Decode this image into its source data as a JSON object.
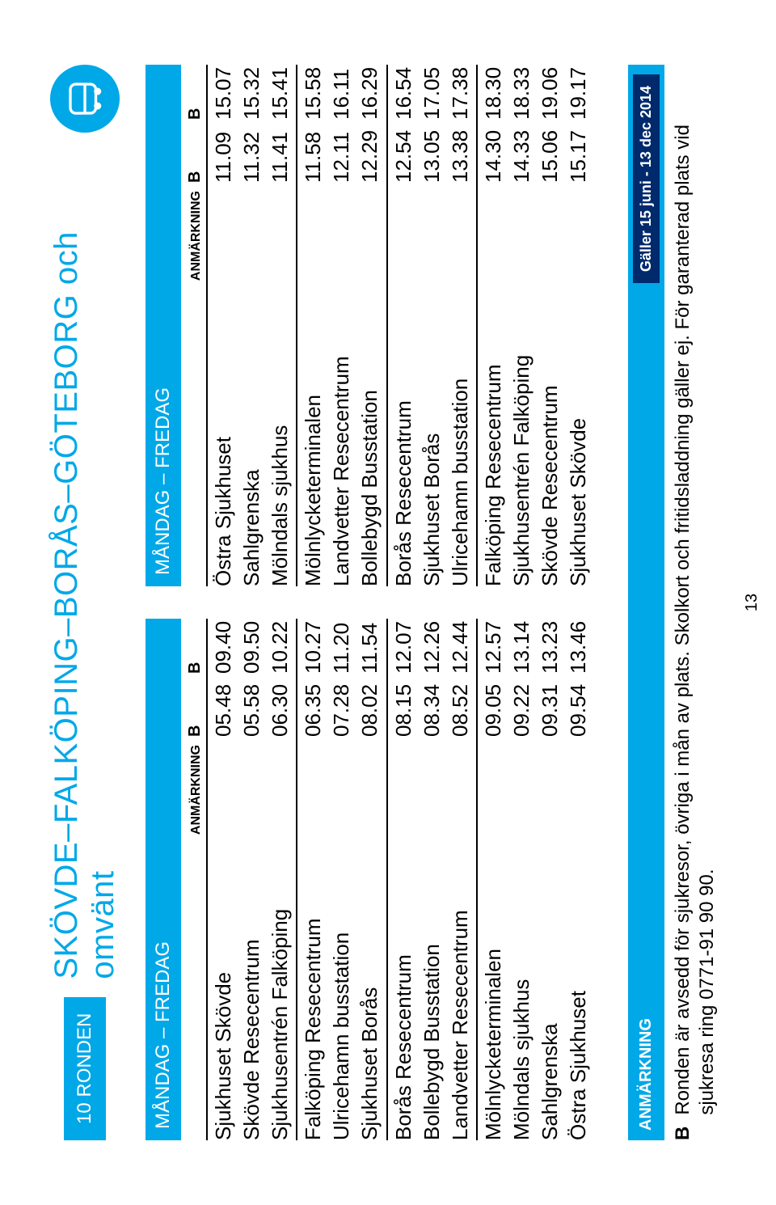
{
  "colors": {
    "primary": "#00a8e8",
    "validity_bg": "#002a6b",
    "text": "#000000",
    "bg": "#ffffff"
  },
  "header": {
    "route_box": "10 RONDEN",
    "title": "SKÖVDE–FALKÖPING–BORÅS–GÖTEBORG och omvänt"
  },
  "day_label": "MÅNDAG – FREDAG",
  "col_header": {
    "anmarkning": "ANMÄRKNING",
    "b": "B"
  },
  "left": {
    "groups": [
      [
        {
          "stop": "Sjukhuset Skövde",
          "t1": "05.48",
          "t2": "09.40"
        },
        {
          "stop": "Skövde Resecentrum",
          "t1": "05.58",
          "t2": "09.50"
        },
        {
          "stop": "Sjukhusentrén Falköping",
          "t1": "06.30",
          "t2": "10.22"
        }
      ],
      [
        {
          "stop": "Falköping Resecentrum",
          "t1": "06.35",
          "t2": "10.27"
        },
        {
          "stop": "Ulricehamn busstation",
          "t1": "07.28",
          "t2": "11.20"
        },
        {
          "stop": "Sjukhuset Borås",
          "t1": "08.02",
          "t2": "11.54"
        }
      ],
      [
        {
          "stop": "Borås Resecentrum",
          "t1": "08.15",
          "t2": "12.07"
        },
        {
          "stop": "Bollebygd Busstation",
          "t1": "08.34",
          "t2": "12.26"
        },
        {
          "stop": "Landvetter Resecentrum",
          "t1": "08.52",
          "t2": "12.44"
        }
      ],
      [
        {
          "stop": "Mölnlycketerminalen",
          "t1": "09.05",
          "t2": "12.57"
        },
        {
          "stop": "Mölndals sjukhus",
          "t1": "09.22",
          "t2": "13.14"
        },
        {
          "stop": "Sahlgrenska",
          "t1": "09.31",
          "t2": "13.23"
        },
        {
          "stop": "Östra Sjukhuset",
          "t1": "09.54",
          "t2": "13.46"
        }
      ]
    ]
  },
  "right": {
    "groups": [
      [
        {
          "stop": "Östra Sjukhuset",
          "t1": "11.09",
          "t2": "15.07"
        },
        {
          "stop": "Sahlgrenska",
          "t1": "11.32",
          "t2": "15.32"
        },
        {
          "stop": "Mölndals sjukhus",
          "t1": "11.41",
          "t2": "15.41"
        }
      ],
      [
        {
          "stop": "Mölnlycketerminalen",
          "t1": "11.58",
          "t2": "15.58"
        },
        {
          "stop": "Landvetter Resecentrum",
          "t1": "12.11",
          "t2": "16.11"
        },
        {
          "stop": "Bollebygd Busstation",
          "t1": "12.29",
          "t2": "16.29"
        }
      ],
      [
        {
          "stop": "Borås Resecentrum",
          "t1": "12.54",
          "t2": "16.54"
        },
        {
          "stop": "Sjukhuset Borås",
          "t1": "13.05",
          "t2": "17.05"
        },
        {
          "stop": "Ulricehamn busstation",
          "t1": "13.38",
          "t2": "17.38"
        }
      ],
      [
        {
          "stop": "Falköping Resecentrum",
          "t1": "14.30",
          "t2": "18.30"
        },
        {
          "stop": "Sjukhusentrén Falköping",
          "t1": "14.33",
          "t2": "18.33"
        },
        {
          "stop": "Skövde Resecentrum",
          "t1": "15.06",
          "t2": "19.06"
        },
        {
          "stop": "Sjukhuset Skövde",
          "t1": "15.17",
          "t2": "19.17"
        }
      ]
    ]
  },
  "footer": {
    "anmarkning_label": "ANMÄRKNING",
    "validity": "Gäller 15 juni - 13 dec 2014",
    "note_b": "B",
    "note_text": "Ronden är avsedd för sjukresor, övriga i mån av plats. Skolkort och fritidsladdning gäller ej. För garanterad plats vid sjukresa ring 0771-91 90 90."
  },
  "page_number": "13"
}
